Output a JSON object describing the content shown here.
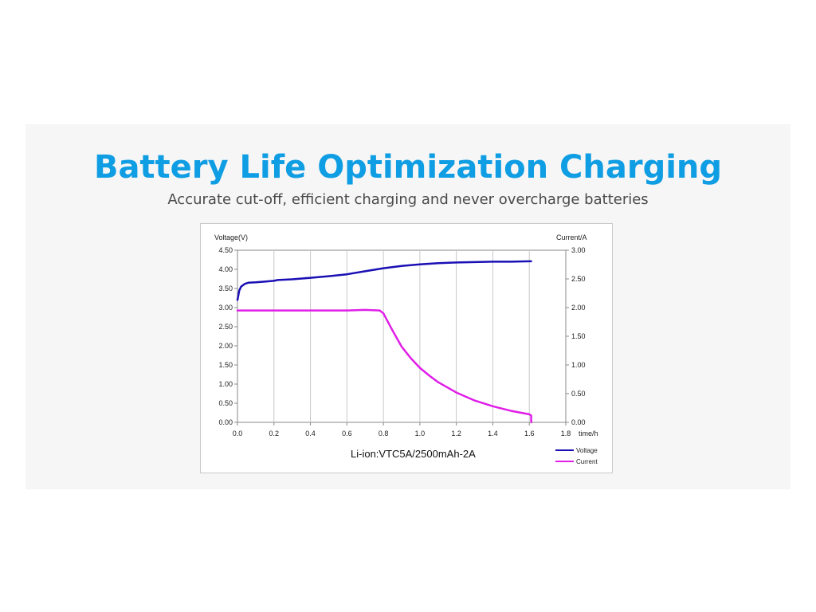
{
  "banner": {
    "title": "Battery Life Optimization Charging",
    "subtitle": "Accurate cut-off, efficient charging and never overcharge batteries"
  },
  "colors": {
    "title": "#0f9de3",
    "voltage": "#1a0fb4",
    "current": "#e01ee8"
  },
  "chart_data": {
    "type": "line",
    "caption": "Li-ion:VTC5A/2500mAh-2A",
    "xlabel": "time/h",
    "ylabel_left": "Voltage(V)",
    "ylabel_right": "Current/A",
    "x_ticks": [
      "0.0",
      "0.2",
      "0.4",
      "0.6",
      "0.8",
      "1.0",
      "1.2",
      "1.4",
      "1.6",
      "1.8"
    ],
    "y_left_ticks": [
      "0.00",
      "0.50",
      "1.00",
      "1.50",
      "2.00",
      "2.50",
      "3.00",
      "3.50",
      "4.00",
      "4.50"
    ],
    "y_right_ticks": [
      "0.00",
      "0.50",
      "1.00",
      "1.50",
      "2.00",
      "2.50",
      "3.00"
    ],
    "xlim": [
      0,
      1.8
    ],
    "ylim_left": [
      0,
      4.5
    ],
    "ylim_right": [
      0,
      3
    ],
    "grid": "vertical",
    "legend_position": "bottom-right",
    "series": [
      {
        "name": "Voltage",
        "axis": "left",
        "color": "#1a0fb4",
        "x": [
          0.0,
          0.01,
          0.02,
          0.04,
          0.06,
          0.1,
          0.15,
          0.2,
          0.22,
          0.3,
          0.4,
          0.5,
          0.6,
          0.7,
          0.8,
          0.9,
          1.0,
          1.1,
          1.2,
          1.3,
          1.4,
          1.5,
          1.6,
          1.61
        ],
        "y": [
          3.2,
          3.45,
          3.55,
          3.62,
          3.65,
          3.66,
          3.68,
          3.7,
          3.72,
          3.74,
          3.78,
          3.82,
          3.87,
          3.95,
          4.03,
          4.09,
          4.13,
          4.16,
          4.18,
          4.19,
          4.2,
          4.2,
          4.21,
          4.21
        ]
      },
      {
        "name": "Current",
        "axis": "right",
        "color": "#e01ee8",
        "x": [
          0.0,
          0.2,
          0.4,
          0.6,
          0.7,
          0.78,
          0.8,
          0.85,
          0.9,
          0.95,
          1.0,
          1.05,
          1.1,
          1.2,
          1.3,
          1.4,
          1.5,
          1.6,
          1.61,
          1.611
        ],
        "y": [
          1.95,
          1.95,
          1.95,
          1.95,
          1.96,
          1.95,
          1.9,
          1.6,
          1.32,
          1.12,
          0.95,
          0.82,
          0.7,
          0.52,
          0.38,
          0.28,
          0.2,
          0.14,
          0.12,
          0.0
        ]
      }
    ]
  }
}
